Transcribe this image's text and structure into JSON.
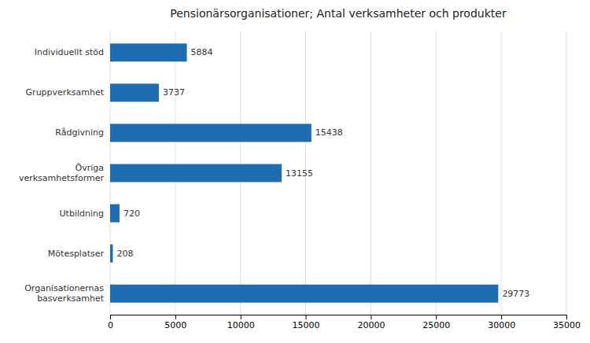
{
  "chart_data": {
    "type": "bar",
    "orientation": "horizontal",
    "title": "Pensionärsorganisationer; Antal verksamheter och produkter",
    "categories": [
      "Organisationernas\nbasverksamhet",
      "Mötesplatser",
      "Utbildning",
      "Övriga\nverksamhetsformer",
      "Rådgivning",
      "Gruppverksamhet",
      "Individuellt stöd"
    ],
    "values": [
      29773,
      208,
      720,
      13155,
      15438,
      3737,
      5884
    ],
    "color": "#1F6CB0",
    "xlim": [
      0,
      35000
    ],
    "xticks": [
      0,
      5000,
      10000,
      15000,
      20000,
      25000,
      30000,
      35000
    ],
    "grid": true,
    "data_labels": true
  }
}
